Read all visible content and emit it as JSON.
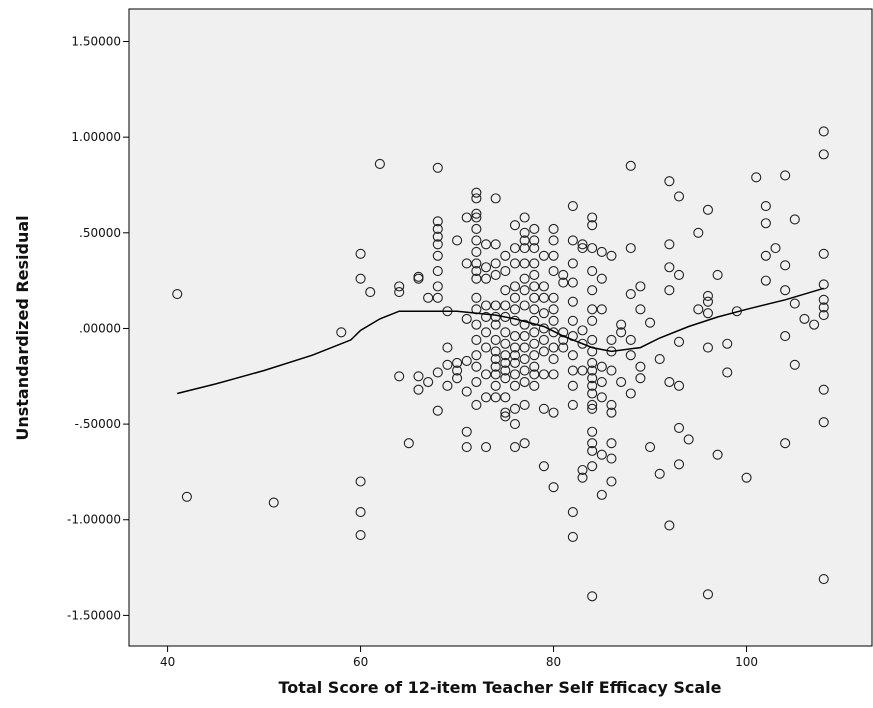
{
  "chart_data": {
    "type": "scatter",
    "xlabel": "Total Score of 12-item Teacher Self Efficacy Scale",
    "ylabel": "Unstandardized Residual",
    "xlim": [
      36,
      113
    ],
    "ylim": [
      -1.66,
      1.67
    ],
    "x_ticks": [
      40,
      60,
      80,
      100
    ],
    "x_tick_labels": [
      "40",
      "60",
      "80",
      "100"
    ],
    "y_ticks": [
      1.5,
      1.0,
      0.5,
      0.0,
      -0.5,
      -1.0,
      -1.5
    ],
    "y_tick_labels": [
      "1.50000",
      "1.00000",
      ".50000",
      ".00000",
      "-.50000",
      "-1.00000",
      "-1.50000"
    ],
    "grid": false,
    "plot_background": "#f0f0f0",
    "marker": "open-circle",
    "points": [
      [
        41,
        0.18
      ],
      [
        42,
        -0.88
      ],
      [
        51,
        -0.91
      ],
      [
        58,
        -0.02
      ],
      [
        60,
        0.39
      ],
      [
        60,
        0.26
      ],
      [
        60,
        -0.8
      ],
      [
        60,
        -0.96
      ],
      [
        60,
        -1.08
      ],
      [
        61,
        0.19
      ],
      [
        62,
        0.86
      ],
      [
        64,
        0.22
      ],
      [
        64,
        0.19
      ],
      [
        64,
        -0.25
      ],
      [
        65,
        -0.6
      ],
      [
        66,
        0.27
      ],
      [
        66,
        0.26
      ],
      [
        66,
        -0.25
      ],
      [
        66,
        -0.32
      ],
      [
        67,
        0.16
      ],
      [
        67,
        -0.28
      ],
      [
        68,
        0.84
      ],
      [
        68,
        0.56
      ],
      [
        68,
        0.52
      ],
      [
        68,
        0.48
      ],
      [
        68,
        0.44
      ],
      [
        68,
        0.38
      ],
      [
        68,
        0.3
      ],
      [
        68,
        0.22
      ],
      [
        68,
        0.16
      ],
      [
        68,
        -0.23
      ],
      [
        68,
        -0.43
      ],
      [
        69,
        0.09
      ],
      [
        69,
        -0.1
      ],
      [
        69,
        -0.19
      ],
      [
        69,
        -0.3
      ],
      [
        70,
        0.46
      ],
      [
        70,
        -0.18
      ],
      [
        70,
        -0.22
      ],
      [
        70,
        -0.26
      ],
      [
        71,
        0.58
      ],
      [
        71,
        0.34
      ],
      [
        71,
        0.05
      ],
      [
        71,
        -0.17
      ],
      [
        71,
        -0.33
      ],
      [
        71,
        -0.54
      ],
      [
        71,
        -0.62
      ],
      [
        72,
        0.71
      ],
      [
        72,
        0.68
      ],
      [
        72,
        0.6
      ],
      [
        72,
        0.58
      ],
      [
        72,
        0.52
      ],
      [
        72,
        0.46
      ],
      [
        72,
        0.4
      ],
      [
        72,
        0.34
      ],
      [
        72,
        0.3
      ],
      [
        72,
        0.26
      ],
      [
        72,
        0.16
      ],
      [
        72,
        0.1
      ],
      [
        72,
        0.02
      ],
      [
        72,
        -0.06
      ],
      [
        72,
        -0.14
      ],
      [
        72,
        -0.2
      ],
      [
        72,
        -0.28
      ],
      [
        72,
        -0.4
      ],
      [
        73,
        0.44
      ],
      [
        73,
        0.32
      ],
      [
        73,
        0.26
      ],
      [
        73,
        0.12
      ],
      [
        73,
        0.06
      ],
      [
        73,
        -0.02
      ],
      [
        73,
        -0.1
      ],
      [
        73,
        -0.24
      ],
      [
        73,
        -0.36
      ],
      [
        73,
        -0.62
      ],
      [
        74,
        0.68
      ],
      [
        74,
        0.44
      ],
      [
        74,
        0.34
      ],
      [
        74,
        0.28
      ],
      [
        74,
        0.12
      ],
      [
        74,
        0.06
      ],
      [
        74,
        0.02
      ],
      [
        74,
        -0.06
      ],
      [
        74,
        -0.12
      ],
      [
        74,
        -0.16
      ],
      [
        74,
        -0.2
      ],
      [
        74,
        -0.24
      ],
      [
        74,
        -0.3
      ],
      [
        74,
        -0.36
      ],
      [
        75,
        0.38
      ],
      [
        75,
        0.3
      ],
      [
        75,
        0.2
      ],
      [
        75,
        0.12
      ],
      [
        75,
        0.06
      ],
      [
        75,
        -0.02
      ],
      [
        75,
        -0.08
      ],
      [
        75,
        -0.14
      ],
      [
        75,
        -0.18
      ],
      [
        75,
        -0.22
      ],
      [
        75,
        -0.26
      ],
      [
        75,
        -0.36
      ],
      [
        75,
        -0.44
      ],
      [
        75,
        -0.46
      ],
      [
        76,
        0.54
      ],
      [
        76,
        0.42
      ],
      [
        76,
        0.34
      ],
      [
        76,
        0.22
      ],
      [
        76,
        0.16
      ],
      [
        76,
        0.1
      ],
      [
        76,
        0.04
      ],
      [
        76,
        -0.04
      ],
      [
        76,
        -0.1
      ],
      [
        76,
        -0.14
      ],
      [
        76,
        -0.18
      ],
      [
        76,
        -0.24
      ],
      [
        76,
        -0.3
      ],
      [
        76,
        -0.42
      ],
      [
        76,
        -0.5
      ],
      [
        76,
        -0.62
      ],
      [
        77,
        0.58
      ],
      [
        77,
        0.5
      ],
      [
        77,
        0.46
      ],
      [
        77,
        0.42
      ],
      [
        77,
        0.34
      ],
      [
        77,
        0.26
      ],
      [
        77,
        0.2
      ],
      [
        77,
        0.12
      ],
      [
        77,
        0.02
      ],
      [
        77,
        -0.04
      ],
      [
        77,
        -0.1
      ],
      [
        77,
        -0.16
      ],
      [
        77,
        -0.22
      ],
      [
        77,
        -0.28
      ],
      [
        77,
        -0.4
      ],
      [
        77,
        -0.6
      ],
      [
        78,
        0.52
      ],
      [
        78,
        0.46
      ],
      [
        78,
        0.42
      ],
      [
        78,
        0.34
      ],
      [
        78,
        0.28
      ],
      [
        78,
        0.22
      ],
      [
        78,
        0.16
      ],
      [
        78,
        0.1
      ],
      [
        78,
        0.04
      ],
      [
        78,
        -0.02
      ],
      [
        78,
        -0.08
      ],
      [
        78,
        -0.14
      ],
      [
        78,
        -0.2
      ],
      [
        78,
        -0.24
      ],
      [
        78,
        -0.3
      ],
      [
        79,
        0.38
      ],
      [
        79,
        0.22
      ],
      [
        79,
        0.16
      ],
      [
        79,
        0.08
      ],
      [
        79,
        0
      ],
      [
        79,
        -0.06
      ],
      [
        79,
        -0.12
      ],
      [
        79,
        -0.24
      ],
      [
        79,
        -0.42
      ],
      [
        79,
        -0.72
      ],
      [
        80,
        0.52
      ],
      [
        80,
        0.46
      ],
      [
        80,
        0.38
      ],
      [
        80,
        0.3
      ],
      [
        80,
        0.16
      ],
      [
        80,
        0.1
      ],
      [
        80,
        0.04
      ],
      [
        80,
        -0.02
      ],
      [
        80,
        -0.1
      ],
      [
        80,
        -0.16
      ],
      [
        80,
        -0.24
      ],
      [
        80,
        -0.44
      ],
      [
        80,
        -0.83
      ],
      [
        81,
        0.28
      ],
      [
        81,
        0.24
      ],
      [
        81,
        -0.02
      ],
      [
        81,
        -0.06
      ],
      [
        81,
        -0.1
      ],
      [
        82,
        0.64
      ],
      [
        82,
        0.46
      ],
      [
        82,
        0.34
      ],
      [
        82,
        0.24
      ],
      [
        82,
        0.14
      ],
      [
        82,
        0.04
      ],
      [
        82,
        -0.04
      ],
      [
        82,
        -0.14
      ],
      [
        82,
        -0.22
      ],
      [
        82,
        -0.3
      ],
      [
        82,
        -0.4
      ],
      [
        82,
        -0.96
      ],
      [
        82,
        -1.09
      ],
      [
        83,
        0.44
      ],
      [
        83,
        0.42
      ],
      [
        83,
        -0.01
      ],
      [
        83,
        -0.08
      ],
      [
        83,
        -0.22
      ],
      [
        83,
        -0.74
      ],
      [
        83,
        -0.78
      ],
      [
        84,
        0.58
      ],
      [
        84,
        0.54
      ],
      [
        84,
        0.42
      ],
      [
        84,
        0.3
      ],
      [
        84,
        0.2
      ],
      [
        84,
        0.1
      ],
      [
        84,
        0.04
      ],
      [
        84,
        -0.06
      ],
      [
        84,
        -0.12
      ],
      [
        84,
        -0.18
      ],
      [
        84,
        -0.22
      ],
      [
        84,
        -0.26
      ],
      [
        84,
        -0.3
      ],
      [
        84,
        -0.34
      ],
      [
        84,
        -0.4
      ],
      [
        84,
        -0.42
      ],
      [
        84,
        -0.54
      ],
      [
        84,
        -0.6
      ],
      [
        84,
        -0.64
      ],
      [
        84,
        -0.72
      ],
      [
        84,
        -1.4
      ],
      [
        85,
        0.4
      ],
      [
        85,
        0.26
      ],
      [
        85,
        0.1
      ],
      [
        85,
        -0.2
      ],
      [
        85,
        -0.28
      ],
      [
        85,
        -0.36
      ],
      [
        85,
        -0.66
      ],
      [
        85,
        -0.87
      ],
      [
        86,
        0.38
      ],
      [
        86,
        -0.06
      ],
      [
        86,
        -0.12
      ],
      [
        86,
        -0.22
      ],
      [
        86,
        -0.4
      ],
      [
        86,
        -0.44
      ],
      [
        86,
        -0.6
      ],
      [
        86,
        -0.68
      ],
      [
        86,
        -0.8
      ],
      [
        87,
        0.02
      ],
      [
        87,
        -0.02
      ],
      [
        87,
        -0.28
      ],
      [
        88,
        0.85
      ],
      [
        88,
        0.42
      ],
      [
        88,
        0.18
      ],
      [
        88,
        -0.06
      ],
      [
        88,
        -0.14
      ],
      [
        88,
        -0.34
      ],
      [
        89,
        0.22
      ],
      [
        89,
        -0.2
      ],
      [
        89,
        -0.26
      ],
      [
        89,
        0.1
      ],
      [
        90,
        0.03
      ],
      [
        90,
        -0.62
      ],
      [
        91,
        -0.16
      ],
      [
        91,
        -0.76
      ],
      [
        92,
        0.77
      ],
      [
        92,
        0.44
      ],
      [
        92,
        0.32
      ],
      [
        92,
        0.2
      ],
      [
        92,
        -0.28
      ],
      [
        92,
        -1.03
      ],
      [
        93,
        0.69
      ],
      [
        93,
        0.28
      ],
      [
        93,
        -0.07
      ],
      [
        93,
        -0.3
      ],
      [
        93,
        -0.52
      ],
      [
        93,
        -0.71
      ],
      [
        94,
        -0.58
      ],
      [
        95,
        0.5
      ],
      [
        95,
        0.1
      ],
      [
        96,
        0.62
      ],
      [
        96,
        0.17
      ],
      [
        96,
        0.14
      ],
      [
        96,
        0.08
      ],
      [
        96,
        -0.1
      ],
      [
        96,
        -1.39
      ],
      [
        97,
        0.28
      ],
      [
        97,
        -0.66
      ],
      [
        98,
        -0.08
      ],
      [
        98,
        -0.23
      ],
      [
        99,
        0.09
      ],
      [
        100,
        -0.78
      ],
      [
        101,
        0.79
      ],
      [
        102,
        0.64
      ],
      [
        102,
        0.55
      ],
      [
        102,
        0.38
      ],
      [
        102,
        0.25
      ],
      [
        103,
        0.42
      ],
      [
        104,
        0.8
      ],
      [
        104,
        0.33
      ],
      [
        104,
        0.2
      ],
      [
        104,
        -0.04
      ],
      [
        104,
        -0.6
      ],
      [
        105,
        0.57
      ],
      [
        105,
        0.13
      ],
      [
        105,
        -0.19
      ],
      [
        106,
        0.05
      ],
      [
        107,
        0.02
      ],
      [
        108,
        1.03
      ],
      [
        108,
        0.91
      ],
      [
        108,
        0.39
      ],
      [
        108,
        0.23
      ],
      [
        108,
        0.15
      ],
      [
        108,
        0.11
      ],
      [
        108,
        0.07
      ],
      [
        108,
        -0.32
      ],
      [
        108,
        -0.49
      ],
      [
        108,
        -1.31
      ]
    ],
    "fit_line": {
      "type": "loess",
      "points": [
        [
          41,
          -0.34
        ],
        [
          45,
          -0.29
        ],
        [
          50,
          -0.22
        ],
        [
          55,
          -0.14
        ],
        [
          59,
          -0.06
        ],
        [
          60,
          -0.01
        ],
        [
          62,
          0.05
        ],
        [
          64,
          0.09
        ],
        [
          67,
          0.09
        ],
        [
          70,
          0.09
        ],
        [
          74,
          0.07
        ],
        [
          76,
          0.05
        ],
        [
          79,
          0.01
        ],
        [
          81,
          -0.04
        ],
        [
          84,
          -0.1
        ],
        [
          86,
          -0.12
        ],
        [
          89,
          -0.1
        ],
        [
          91,
          -0.05
        ],
        [
          94,
          0.01
        ],
        [
          97,
          0.06
        ],
        [
          100,
          0.1
        ],
        [
          104,
          0.15
        ],
        [
          108,
          0.21
        ]
      ]
    }
  }
}
